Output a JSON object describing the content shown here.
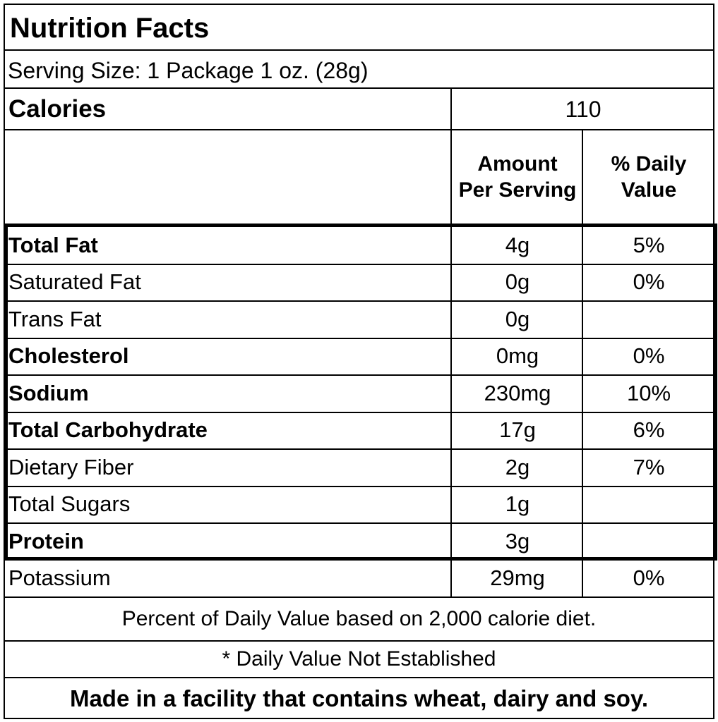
{
  "title": "Nutrition Facts",
  "serving_size": "Serving Size: 1 Package 1 oz. (28g)",
  "calories": {
    "label": "Calories",
    "value": "110"
  },
  "headers": {
    "amount_line1": "Amount",
    "amount_line2": "Per Serving",
    "dv_line1": "% Daily",
    "dv_line2": "Value"
  },
  "nutrients": [
    {
      "name": "Total Fat",
      "amount": "4g",
      "dv": "5%",
      "bold": true
    },
    {
      "name": "Saturated Fat",
      "amount": "0g",
      "dv": "0%",
      "bold": false
    },
    {
      "name": "Trans Fat",
      "amount": "0g",
      "dv": "",
      "bold": false
    },
    {
      "name": "Cholesterol",
      "amount": "0mg",
      "dv": "0%",
      "bold": true
    },
    {
      "name": "Sodium",
      "amount": "230mg",
      "dv": "10%",
      "bold": true
    },
    {
      "name": "Total Carbohydrate",
      "amount": "17g",
      "dv": "6%",
      "bold": true
    },
    {
      "name": "Dietary Fiber",
      "amount": "2g",
      "dv": "7%",
      "bold": false
    },
    {
      "name": "Total Sugars",
      "amount": "1g",
      "dv": "",
      "bold": false
    },
    {
      "name": "Protein",
      "amount": "3g",
      "dv": "",
      "bold": true
    }
  ],
  "potassium": {
    "name": "Potassium",
    "amount": "29mg",
    "dv": "0%"
  },
  "footnotes": {
    "daily_value_basis": "Percent of Daily Value based on 2,000 calorie diet.",
    "not_established": "* Daily Value Not Established",
    "allergen": "Made in a facility that contains wheat, dairy and soy."
  }
}
